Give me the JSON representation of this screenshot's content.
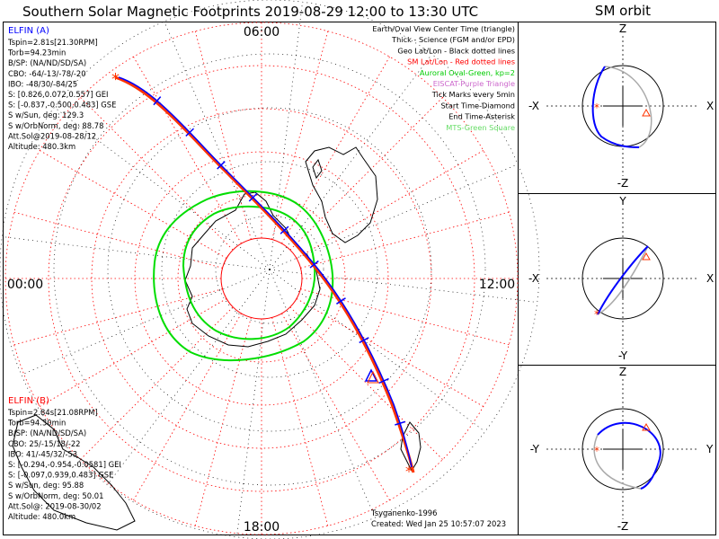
{
  "title": "Southern Solar Magnetic Footprints 2019-08-29 12:00 to 13:30 UTC",
  "orbit_title": "SM orbit",
  "mlt": {
    "top": "06:00",
    "left": "00:00",
    "right": "12:00",
    "bottom": "18:00"
  },
  "legend": [
    {
      "text": "Earth/Oval View Center Time (triangle)",
      "color": "#000000"
    },
    {
      "text": "Thick - Science (FGM and/or EPD)",
      "color": "#000000"
    },
    {
      "text": "Geo Lat/Lon - Black dotted lines",
      "color": "#000000"
    },
    {
      "text": "SM Lat/Lon - Red dotted lines",
      "color": "#ff0000"
    },
    {
      "text": "Auroral Oval-Green, kp=2",
      "color": "#00cc00"
    },
    {
      "text": "EISCAT-Purple Triangle",
      "color": "#cc66cc"
    },
    {
      "text": "Tick Marks every 5min",
      "color": "#000000"
    },
    {
      "text": "Start Time-Diamond",
      "color": "#000000"
    },
    {
      "text": "End Time-Asterisk",
      "color": "#000000"
    },
    {
      "text": "MTS-Green Square",
      "color": "#66dd66"
    }
  ],
  "probe_a": {
    "name": "ELFIN (A)",
    "color": "#0000ff",
    "lines": [
      "Tspin=2.81s[21.30RPM]",
      "Torb=94.23min",
      "B/SP: (NA/ND/SD/SA)",
      "CBO: -64/-13/-78/-20",
      "IBO: -48/30/-84/25",
      "S: [0.826,0.072,0.557] GEI",
      "S: [-0.837,-0.500,0.483] GSE",
      "S w/Sun, deg: 129.3",
      "S w/OrbNorm, deg: 88.78",
      "Att.Sol@2019-08-28/12",
      "Altitude: 480.3km"
    ]
  },
  "probe_b": {
    "name": "ELFIN (B)",
    "color": "#ff0000",
    "lines": [
      "Tspin=2.84s[21.08RPM]",
      "Torb=94.30min",
      "B/SP: (NA/ND/SD/SA)",
      "CBO: 25/-15/18/-22",
      "IBO: 41/-45/32/-53",
      "S: [-0.294,-0.954,-0.0581] GEI",
      "S: [-0.097,0.939,0.483] GSE",
      "S w/Sun, deg: 95.88",
      "S w/OrbNorm, deg: 50.01",
      "Att.Sol@: 2019-08-30/02",
      "Altitude: 480.0km"
    ]
  },
  "credit": "Tsyganenko-1996",
  "created": "Created: Wed Jan 25 10:57:07 2023",
  "orbit_panels": [
    {
      "top": "Z",
      "bottom": "-Z",
      "left": "-X",
      "right": "X"
    },
    {
      "top": "Y",
      "bottom": "-Y",
      "left": "-X",
      "right": "X"
    },
    {
      "top": "Z",
      "bottom": "-Z",
      "left": "-Y",
      "right": "Y"
    }
  ],
  "colors": {
    "probe_a": "#0000ff",
    "probe_b": "#ff3300",
    "grid_sm": "#ff0000",
    "grid_geo": "#000000",
    "oval": "#00dd00",
    "orbit_gray": "#aaaaaa"
  }
}
